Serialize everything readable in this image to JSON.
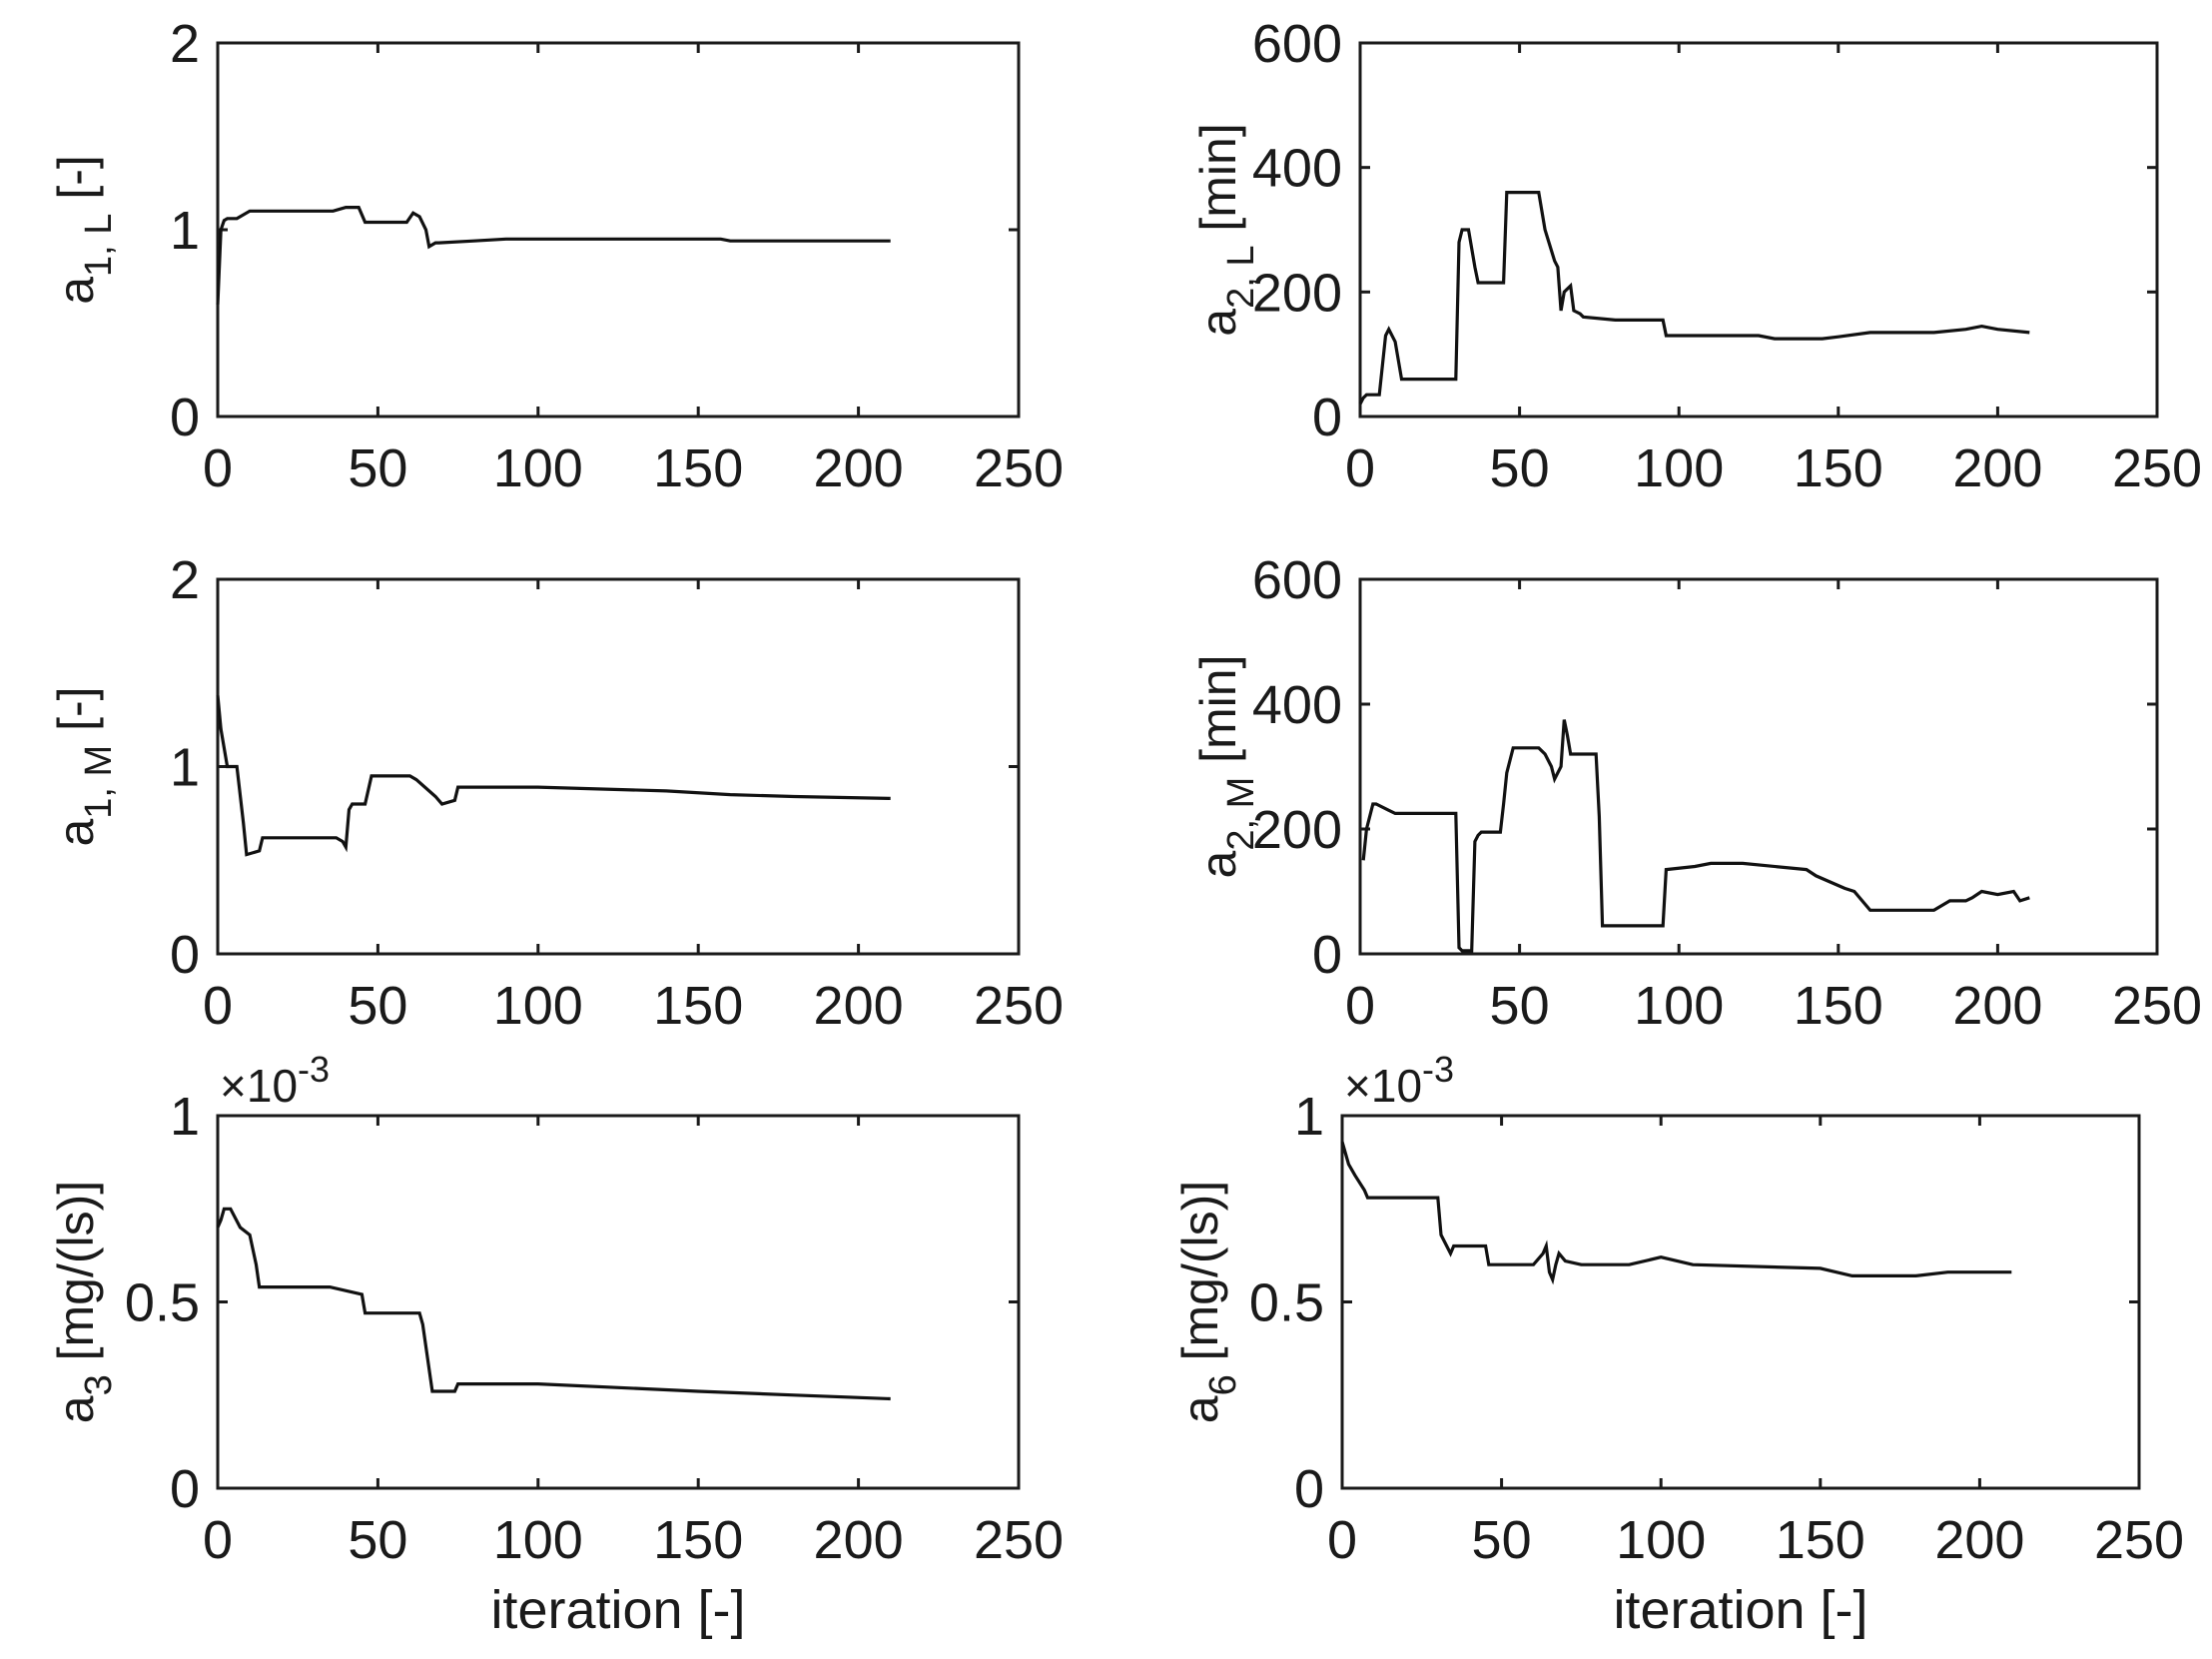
{
  "chart_data": [
    {
      "type": "line",
      "panel": "top-left",
      "ylabel": {
        "base": "a",
        "sub": "1, L",
        "unit": " [-]"
      },
      "xlabel": "",
      "xlim": [
        0,
        250
      ],
      "ylim": [
        0,
        2
      ],
      "xticks": [
        "0",
        "50",
        "100",
        "150",
        "200",
        "250"
      ],
      "yticks": [
        "0",
        "1",
        "2"
      ],
      "exponent": "",
      "series": [
        {
          "name": "a1L",
          "x": [
            0,
            1,
            2,
            3,
            6,
            10,
            36,
            40,
            44,
            46,
            59,
            61,
            63,
            65,
            66,
            68,
            69,
            80,
            90,
            157,
            160,
            210
          ],
          "y": [
            0.6,
            1.0,
            1.05,
            1.06,
            1.06,
            1.1,
            1.1,
            1.12,
            1.12,
            1.04,
            1.04,
            1.09,
            1.07,
            1.0,
            0.91,
            0.93,
            0.93,
            0.94,
            0.95,
            0.95,
            0.94,
            0.94
          ]
        }
      ]
    },
    {
      "type": "line",
      "panel": "top-right",
      "ylabel": {
        "base": "a",
        "sub": "2, L",
        "unit": " [min]"
      },
      "xlabel": "",
      "xlim": [
        0,
        250
      ],
      "ylim": [
        0,
        600
      ],
      "xticks": [
        "0",
        "50",
        "100",
        "150",
        "200",
        "250"
      ],
      "yticks": [
        "0",
        "200",
        "400",
        "600"
      ],
      "exponent": "",
      "series": [
        {
          "name": "a2L",
          "x": [
            0,
            1,
            2,
            6,
            8,
            9,
            11,
            13,
            30,
            31,
            32,
            34,
            36,
            37,
            45,
            46,
            56,
            58,
            61,
            62,
            63,
            64,
            66,
            67,
            69,
            70,
            80,
            95,
            96,
            125,
            130,
            145,
            150,
            160,
            180,
            190,
            195,
            200,
            210
          ],
          "y": [
            20,
            30,
            35,
            35,
            130,
            140,
            120,
            60,
            60,
            280,
            300,
            300,
            240,
            215,
            215,
            360,
            360,
            300,
            250,
            240,
            170,
            200,
            210,
            170,
            165,
            160,
            155,
            155,
            130,
            130,
            125,
            125,
            128,
            135,
            135,
            140,
            145,
            140,
            135
          ]
        }
      ]
    },
    {
      "type": "line",
      "panel": "middle-left",
      "ylabel": {
        "base": "a",
        "sub": "1, M",
        "unit": " [-]"
      },
      "xlabel": "",
      "xlim": [
        0,
        250
      ],
      "ylim": [
        0,
        2
      ],
      "xticks": [
        "0",
        "50",
        "100",
        "150",
        "200",
        "250"
      ],
      "yticks": [
        "0",
        "1",
        "2"
      ],
      "exponent": "",
      "series": [
        {
          "name": "a1M",
          "x": [
            0,
            1,
            3,
            6,
            8,
            9,
            13,
            14,
            37,
            39,
            40,
            41,
            42,
            46,
            48,
            60,
            62,
            68,
            70,
            74,
            75,
            100,
            140,
            160,
            180,
            210
          ],
          "y": [
            1.38,
            1.2,
            1.0,
            1.0,
            0.7,
            0.53,
            0.55,
            0.62,
            0.62,
            0.6,
            0.57,
            0.77,
            0.8,
            0.8,
            0.95,
            0.95,
            0.93,
            0.84,
            0.8,
            0.82,
            0.89,
            0.89,
            0.87,
            0.85,
            0.84,
            0.83
          ]
        }
      ]
    },
    {
      "type": "line",
      "panel": "middle-right",
      "ylabel": {
        "base": "a",
        "sub": "2, M",
        "unit": " [min]"
      },
      "xlabel": "",
      "xlim": [
        0,
        250
      ],
      "ylim": [
        0,
        600
      ],
      "xticks": [
        "0",
        "50",
        "100",
        "150",
        "200",
        "250"
      ],
      "yticks": [
        "0",
        "200",
        "400",
        "600"
      ],
      "exponent": "",
      "series": [
        {
          "name": "a2M",
          "x": [
            1,
            2,
            4,
            5,
            9,
            11,
            30,
            31,
            32,
            34,
            35,
            36,
            37,
            38,
            44,
            45,
            46,
            48,
            56,
            58,
            60,
            61,
            63,
            64,
            65,
            66,
            67,
            74,
            75,
            76,
            95,
            96,
            105,
            110,
            120,
            140,
            143,
            152,
            155,
            160,
            180,
            185,
            190,
            192,
            195,
            200,
            205,
            207,
            210
          ],
          "y": [
            150,
            200,
            240,
            240,
            230,
            225,
            225,
            10,
            5,
            5,
            5,
            180,
            190,
            195,
            195,
            240,
            290,
            330,
            330,
            320,
            300,
            280,
            300,
            375,
            350,
            320,
            320,
            320,
            220,
            45,
            45,
            135,
            140,
            145,
            145,
            135,
            125,
            105,
            100,
            70,
            70,
            85,
            85,
            90,
            100,
            95,
            100,
            85,
            90
          ]
        }
      ]
    },
    {
      "type": "line",
      "panel": "bottom-left",
      "ylabel": {
        "base": "a",
        "sub": "3",
        "unit": " [mg/(ls)]"
      },
      "xlabel": "iteration [-]",
      "xlim": [
        0,
        250
      ],
      "ylim": [
        0,
        1
      ],
      "xticks": [
        "0",
        "50",
        "100",
        "150",
        "200",
        "250"
      ],
      "yticks": [
        "0",
        "0.5",
        "1"
      ],
      "exponent": "×10",
      "exponent_power": "-3",
      "series": [
        {
          "name": "a3",
          "x": [
            0,
            1,
            2,
            4,
            7,
            10,
            12,
            13,
            35,
            45,
            46,
            63,
            64,
            67,
            70,
            74,
            75,
            100,
            150,
            180,
            210
          ],
          "y": [
            0.7,
            0.72,
            0.75,
            0.75,
            0.7,
            0.68,
            0.6,
            0.54,
            0.54,
            0.52,
            0.47,
            0.47,
            0.44,
            0.26,
            0.26,
            0.26,
            0.28,
            0.28,
            0.26,
            0.25,
            0.24
          ]
        }
      ]
    },
    {
      "type": "line",
      "panel": "bottom-right",
      "ylabel": {
        "base": "a",
        "sub": "6",
        "unit": " [mg/(ls)]"
      },
      "xlabel": "iteration [-]",
      "xlim": [
        0,
        250
      ],
      "ylim": [
        0,
        1
      ],
      "xticks": [
        "0",
        "50",
        "100",
        "150",
        "200",
        "250"
      ],
      "yticks": [
        "0",
        "0.5",
        "1"
      ],
      "exponent": "×10",
      "exponent_power": "-3",
      "series": [
        {
          "name": "a6",
          "x": [
            0,
            2,
            4,
            7,
            8,
            30,
            31,
            34,
            35,
            45,
            46,
            60,
            63,
            64,
            65,
            66,
            67,
            68,
            70,
            75,
            90,
            100,
            110,
            150,
            160,
            170,
            180,
            190,
            210
          ],
          "y": [
            0.93,
            0.87,
            0.84,
            0.8,
            0.78,
            0.78,
            0.68,
            0.63,
            0.65,
            0.65,
            0.6,
            0.6,
            0.63,
            0.65,
            0.58,
            0.56,
            0.6,
            0.63,
            0.61,
            0.6,
            0.6,
            0.62,
            0.6,
            0.59,
            0.57,
            0.57,
            0.57,
            0.58,
            0.58
          ]
        }
      ]
    }
  ]
}
